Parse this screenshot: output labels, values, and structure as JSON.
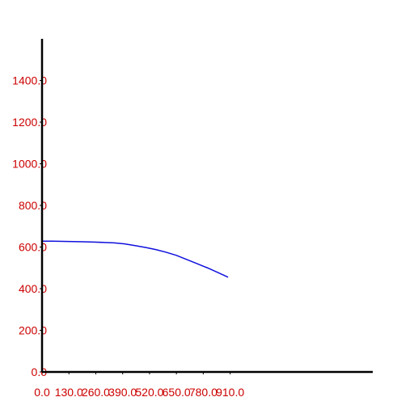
{
  "chart_data": {
    "type": "line",
    "title": "",
    "xlabel": "",
    "ylabel": "",
    "xlim": [
      0,
      1600
    ],
    "ylim": [
      0,
      1600
    ],
    "grid": false,
    "x_ticks": [
      0,
      130,
      260,
      390,
      520,
      650,
      780,
      910
    ],
    "x_tick_labels": [
      "0.0",
      "130.0",
      "260.0",
      "390.0",
      "520.0",
      "650.0",
      "780.0",
      "910.0"
    ],
    "y_ticks": [
      0,
      200,
      400,
      600,
      800,
      1000,
      1200,
      1400
    ],
    "y_tick_labels": [
      "0.0",
      "200.0",
      "400.0",
      "600.0",
      "800.0",
      "1000.0",
      "1200.0",
      "1400.0"
    ],
    "series": [
      {
        "color": "#1010dd",
        "x": [
          0,
          50,
          100,
          150,
          200,
          250,
          300,
          350,
          400,
          450,
          500,
          550,
          600,
          650,
          700,
          750,
          800,
          850,
          900
        ],
        "y": [
          628,
          628,
          627,
          626,
          625,
          624,
          622,
          620,
          615,
          607,
          598,
          588,
          575,
          560,
          540,
          520,
          500,
          478,
          455
        ]
      }
    ]
  }
}
